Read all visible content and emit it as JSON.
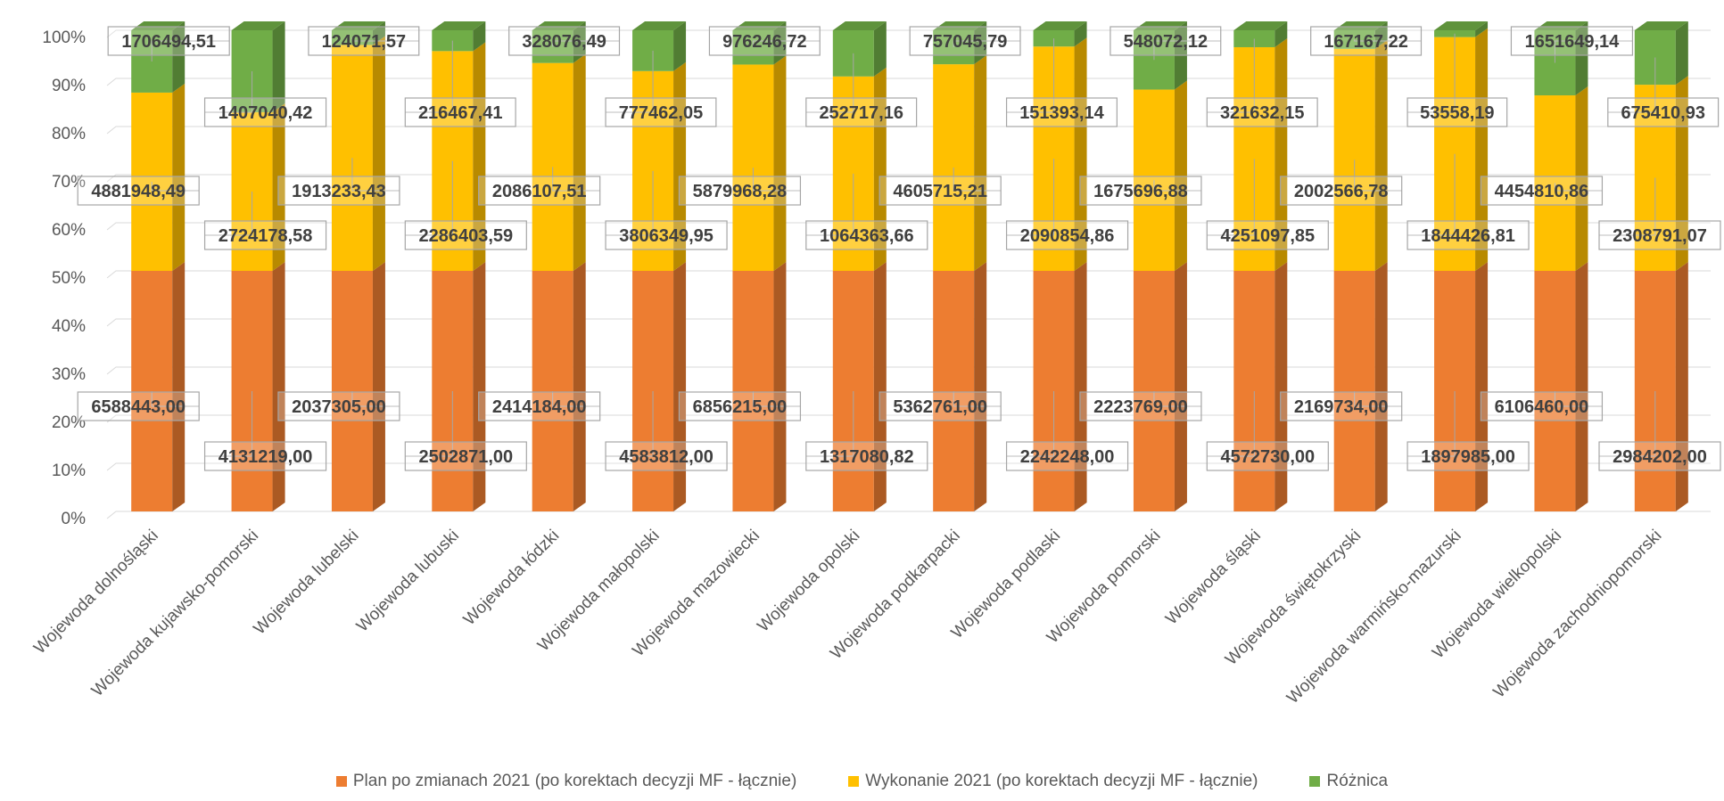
{
  "chart_data": {
    "type": "bar",
    "stacked": "percent",
    "style": "3d-column",
    "categories": [
      "Wojewoda dolnośląski",
      "Wojewoda kujawsko-pomorski",
      "Wojewoda lubelski",
      "Wojewoda lubuski",
      "Wojewoda łódzki",
      "Wojewoda małopolski",
      "Wojewoda mazowiecki",
      "Wojewoda opolski",
      "Wojewoda podkarpacki",
      "Wojewoda podlaski",
      "Wojewoda pomorski",
      "Wojewoda śląski",
      "Wojewoda świętokrzyski",
      "Wojewoda warmińsko-mazurski",
      "Wojewoda wielkopolski",
      "Wojewoda zachodniopomorski"
    ],
    "series": [
      {
        "name": "Plan po zmianach 2021 (po korektach decyzji MF - łącznie)",
        "color": "#ED7D31",
        "values": [
          6588443.0,
          4131219.0,
          2037305.0,
          2502871.0,
          2414184.0,
          4583812.0,
          6856215.0,
          1317080.82,
          5362761.0,
          2242248.0,
          2223769.0,
          4572730.0,
          2169734.0,
          1897985.0,
          6106460.0,
          2984202.0
        ],
        "labels": [
          "6588443,00",
          "4131219,00",
          "2037305,00",
          "2502871,00",
          "2414184,00",
          "4583812,00",
          "6856215,00",
          "1317080,82",
          "5362761,00",
          "2242248,00",
          "2223769,00",
          "4572730,00",
          "2169734,00",
          "1897985,00",
          "6106460,00",
          "2984202,00"
        ]
      },
      {
        "name": "Wykonanie 2021 (po korektach decyzji MF - łącznie)",
        "color": "#FFC000",
        "values": [
          4881948.49,
          2724178.58,
          1913233.43,
          2286403.59,
          2086107.51,
          3806349.95,
          5879968.28,
          1064363.66,
          4605715.21,
          2090854.86,
          1675696.88,
          4251097.85,
          2002566.78,
          1844426.81,
          4454810.86,
          2308791.07
        ],
        "labels": [
          "4881948,49",
          "2724178,58",
          "1913233,43",
          "2286403,59",
          "2086107,51",
          "3806349,95",
          "5879968,28",
          "1064363,66",
          "4605715,21",
          "2090854,86",
          "1675696,88",
          "4251097,85",
          "2002566,78",
          "1844426,81",
          "4454810,86",
          "2308791,07"
        ]
      },
      {
        "name": "Różnica",
        "color": "#70AD47",
        "values": [
          1706494.51,
          1407040.42,
          124071.57,
          216467.41,
          328076.49,
          777462.05,
          976246.72,
          252717.16,
          757045.79,
          151393.14,
          548072.12,
          321632.15,
          167167.22,
          53558.19,
          1651649.14,
          675410.93
        ],
        "labels": [
          "1706494,51",
          "1407040,42",
          "124071,57",
          "216467,41",
          "328076,49",
          "777462,05",
          "976246,72",
          "252717,16",
          "757045,79",
          "151393,14",
          "548072,12",
          "321632,15",
          "167167,22",
          "53558,19",
          "1651649,14",
          "675410,93"
        ]
      }
    ],
    "y_ticks": [
      "0%",
      "10%",
      "20%",
      "30%",
      "40%",
      "50%",
      "60%",
      "70%",
      "80%",
      "90%",
      "100%"
    ],
    "ylim": [
      0,
      100
    ],
    "grid": true,
    "legend": "bottom",
    "title": "",
    "xlabel": "",
    "ylabel": ""
  }
}
